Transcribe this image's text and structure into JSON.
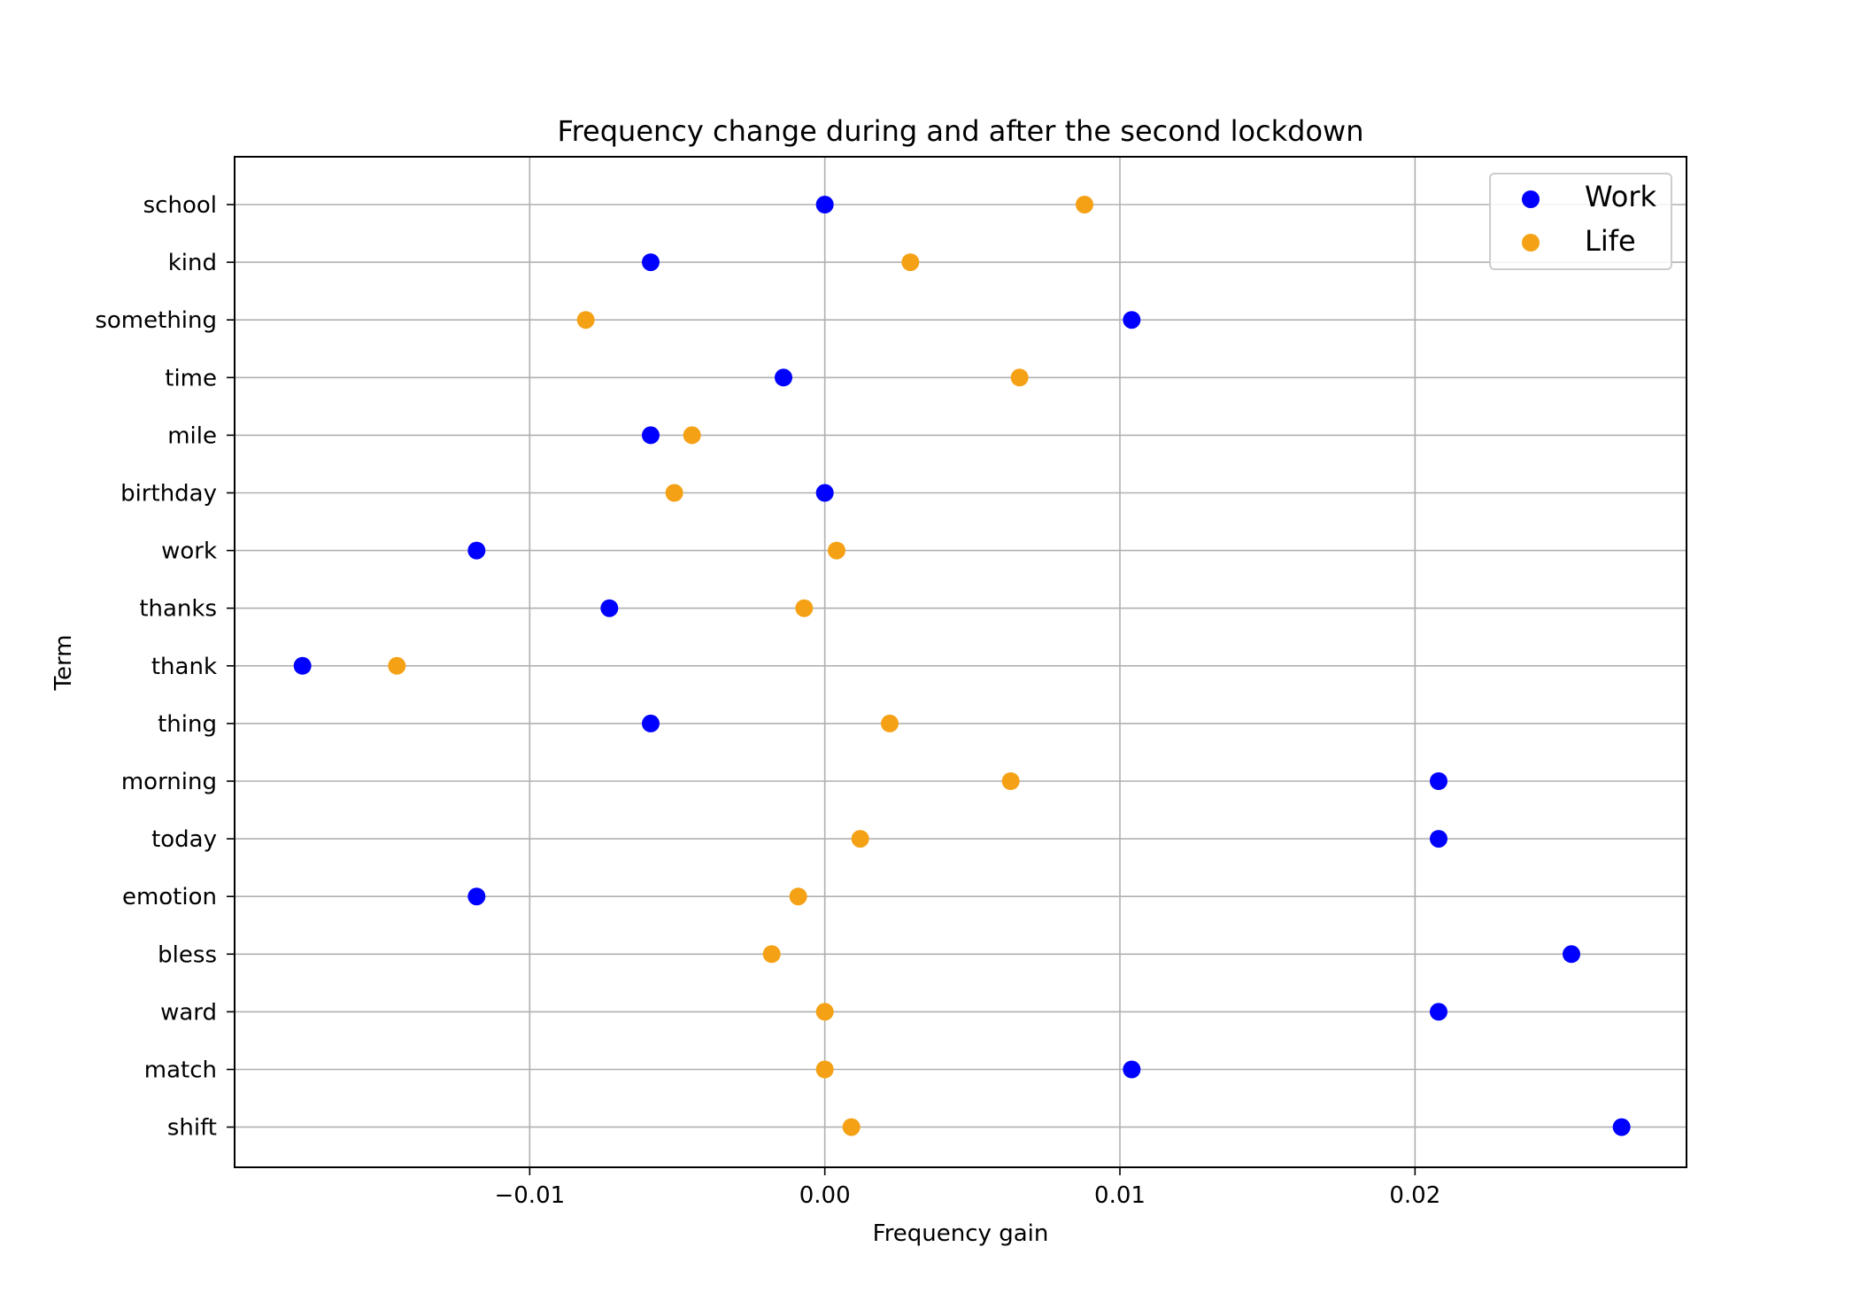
{
  "chart_data": {
    "type": "scatter",
    "title": "Frequency change during and after the second lockdown",
    "xlabel": "Frequency gain",
    "ylabel": "Term",
    "xlim": [
      -0.02,
      0.0292
    ],
    "xticks": [
      {
        "value": -0.01,
        "label": "−0.01"
      },
      {
        "value": 0.0,
        "label": "0.00"
      },
      {
        "value": 0.01,
        "label": "0.01"
      },
      {
        "value": 0.02,
        "label": "0.02"
      }
    ],
    "grid": true,
    "legend_position": "top-right",
    "categories": [
      "school",
      "kind",
      "something",
      "time",
      "mile",
      "birthday",
      "work",
      "thanks",
      "thank",
      "thing",
      "morning",
      "today",
      "emotion",
      "bless",
      "ward",
      "match",
      "shift"
    ],
    "series": [
      {
        "name": "Work",
        "color": "#0000ff",
        "values": [
          0.0,
          -0.0059,
          0.0104,
          -0.0014,
          -0.0059,
          0.0,
          -0.0118,
          -0.0073,
          -0.0177,
          -0.0059,
          0.0208,
          0.0208,
          -0.0118,
          0.0253,
          0.0208,
          0.0104,
          0.027
        ]
      },
      {
        "name": "Life",
        "color": "#f5a115",
        "values": [
          0.0088,
          0.0029,
          -0.0081,
          0.0066,
          -0.0045,
          -0.0051,
          0.0004,
          -0.0007,
          -0.0145,
          0.0022,
          0.0063,
          0.0012,
          -0.0009,
          -0.0018,
          0.0,
          0.0,
          0.0009
        ]
      }
    ]
  }
}
